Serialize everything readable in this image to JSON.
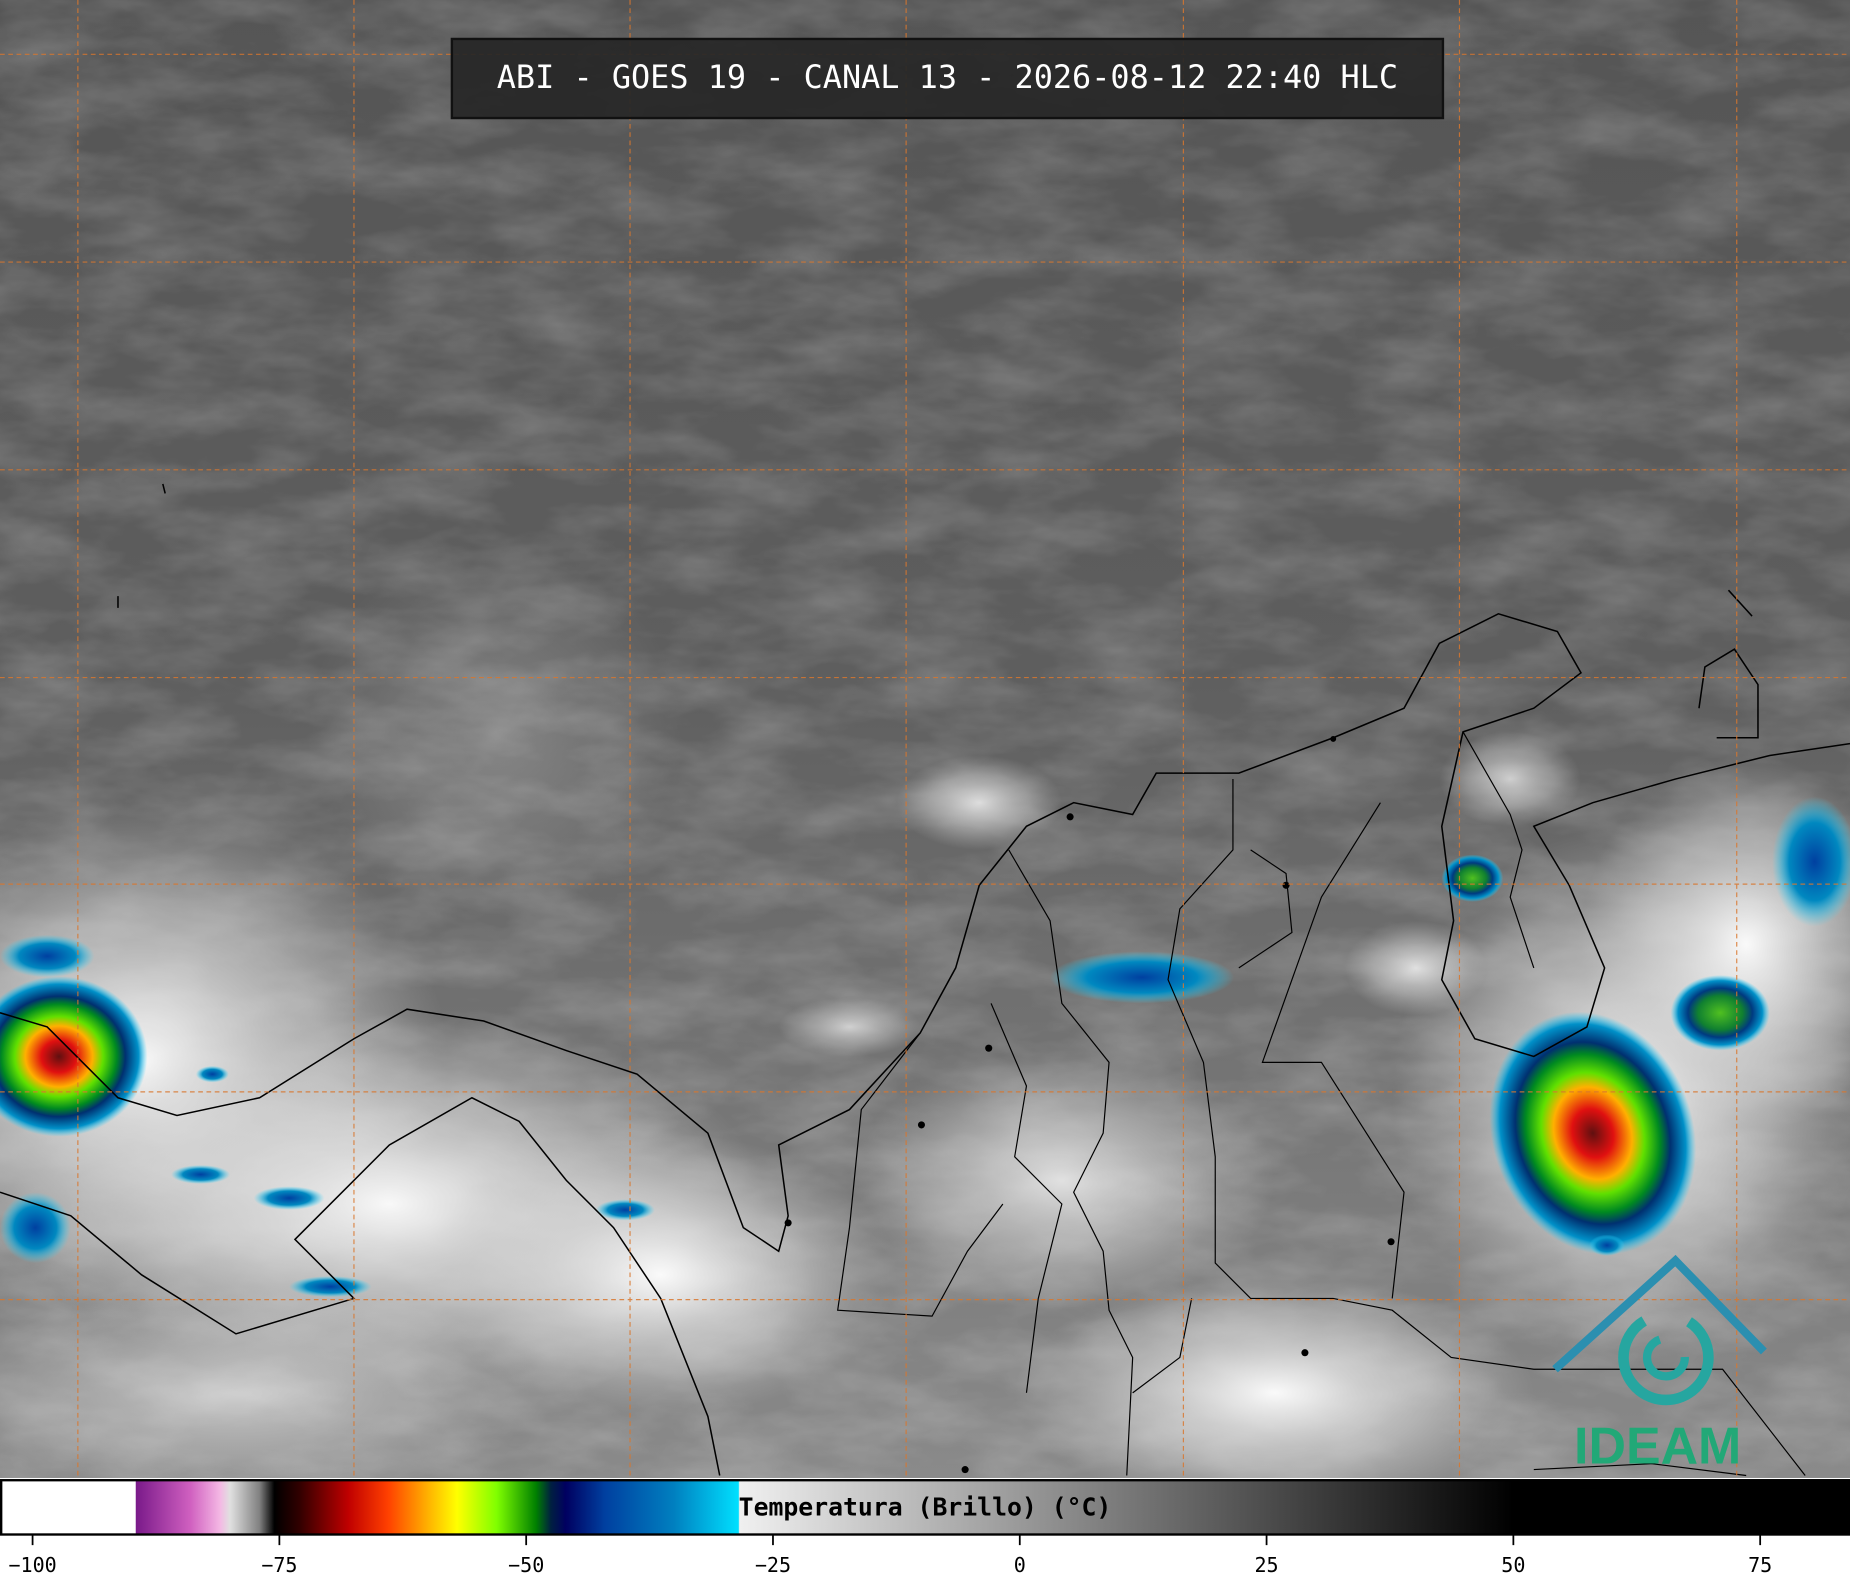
{
  "header": {
    "title": "ABI - GOES 19 - CANAL 13 - 2026-08-12 22:40 HLC"
  },
  "colorbar": {
    "label": "Temperatura (Brillo) (°C)",
    "lim": [
      -103.3,
      84.1
    ],
    "ticks": [
      {
        "value": -100,
        "label": "−100"
      },
      {
        "value": -75,
        "label": "−75"
      },
      {
        "value": -50,
        "label": "−50"
      },
      {
        "value": -25,
        "label": "−25"
      },
      0,
      25,
      50,
      75
    ],
    "stops": [
      {
        "value": -103.3,
        "color": "#ffffff"
      },
      {
        "value": -89.6,
        "color": "#ffffff"
      },
      {
        "value": -89.5,
        "color": "#7a1a8a"
      },
      {
        "value": -84,
        "color": "#d060c0"
      },
      {
        "value": -81,
        "color": "#f4b8e4"
      },
      {
        "value": -80,
        "color": "#e0e0e0"
      },
      {
        "value": -77,
        "color": "#808080"
      },
      {
        "value": -75.5,
        "color": "#000000"
      },
      {
        "value": -73,
        "color": "#300000"
      },
      {
        "value": -68,
        "color": "#c00000"
      },
      {
        "value": -64,
        "color": "#ff4000"
      },
      {
        "value": -60,
        "color": "#ffb000"
      },
      {
        "value": -57,
        "color": "#ffff00"
      },
      {
        "value": -53,
        "color": "#80ff00"
      },
      {
        "value": -49,
        "color": "#008000"
      },
      {
        "value": -47.5,
        "color": "#002040"
      },
      {
        "value": -46,
        "color": "#000060"
      },
      {
        "value": -42,
        "color": "#0040a0"
      },
      {
        "value": -35,
        "color": "#0080c0"
      },
      {
        "value": -28.5,
        "color": "#00e0ff"
      },
      {
        "value": -28.4,
        "color": "#f0f0f0"
      },
      {
        "value": 50,
        "color": "#000000"
      },
      {
        "value": 84.1,
        "color": "#000000"
      }
    ]
  },
  "logo": {
    "text": "IDEAM"
  }
}
